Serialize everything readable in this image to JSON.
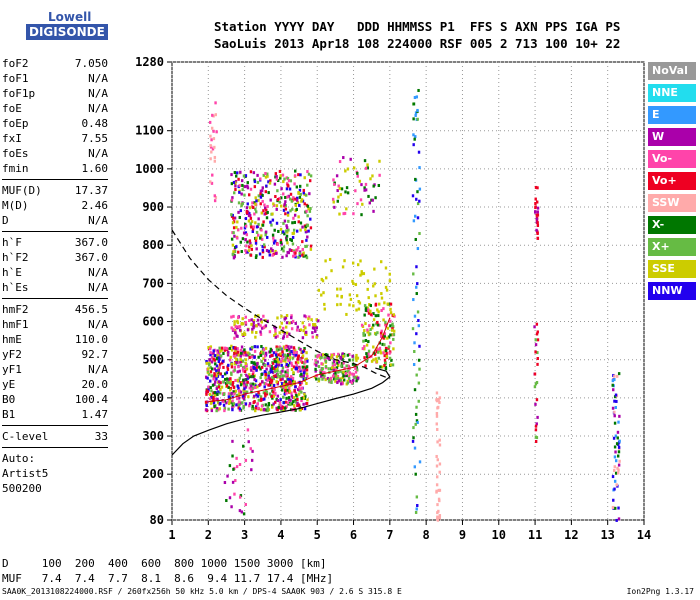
{
  "logo": {
    "line1": "Lowell",
    "line2": "DIGISONDE"
  },
  "header": {
    "labels": "Station YYYY DAY   DDD HHMMSS P1  FFS S AXN PPS IGA PS",
    "values": "SaoLuis 2013 Apr18 108 224000 RSF 005 2 713 100 10+ 22"
  },
  "params": [
    [
      {
        "k": "foF2",
        "v": "7.050"
      },
      {
        "k": "foF1",
        "v": "N/A"
      },
      {
        "k": "foF1p",
        "v": "N/A"
      },
      {
        "k": "foE",
        "v": "N/A"
      },
      {
        "k": "foEp",
        "v": "0.48"
      },
      {
        "k": "fxI",
        "v": "7.55"
      },
      {
        "k": "foEs",
        "v": "N/A"
      },
      {
        "k": "fmin",
        "v": "1.60"
      }
    ],
    [
      {
        "k": "MUF(D)",
        "v": "17.37"
      },
      {
        "k": "M(D)",
        "v": "2.46"
      },
      {
        "k": "D",
        "v": "N/A"
      }
    ],
    [
      {
        "k": "h`F",
        "v": "367.0"
      },
      {
        "k": "h`F2",
        "v": "367.0"
      },
      {
        "k": "h`E",
        "v": "N/A"
      },
      {
        "k": "h`Es",
        "v": "N/A"
      }
    ],
    [
      {
        "k": "hmF2",
        "v": "456.5"
      },
      {
        "k": "hmF1",
        "v": "N/A"
      },
      {
        "k": "hmE",
        "v": "110.0"
      },
      {
        "k": "yF2",
        "v": "92.7"
      },
      {
        "k": "yF1",
        "v": "N/A"
      },
      {
        "k": "yE",
        "v": "20.0"
      },
      {
        "k": "B0",
        "v": "100.4"
      },
      {
        "k": "B1",
        "v": "1.47"
      }
    ],
    [
      {
        "k": "C-level",
        "v": "33"
      }
    ]
  ],
  "auto": {
    "l1": "Auto:",
    "l2": "Artist5",
    "l3": "500200"
  },
  "legend": [
    {
      "label": "NoVal",
      "color": "#999999"
    },
    {
      "label": "NNE",
      "color": "#22ddee"
    },
    {
      "label": "E",
      "color": "#3399ff"
    },
    {
      "label": "W",
      "color": "#aa00aa"
    },
    {
      "label": "Vo-",
      "color": "#ff44aa"
    },
    {
      "label": "Vo+",
      "color": "#ee0022"
    },
    {
      "label": "SSW",
      "color": "#ffaaaa"
    },
    {
      "label": "X-",
      "color": "#007700"
    },
    {
      "label": "X+",
      "color": "#66bb44"
    },
    {
      "label": "SSE",
      "color": "#cccc00"
    },
    {
      "label": "NNW",
      "color": "#2200ee"
    }
  ],
  "bottom": {
    "row1": "D     100  200  400  600  800 1000 1500 3000 [km]",
    "row2": "MUF   7.4  7.4  7.7  8.1  8.6  9.4 11.7 17.4 [MHz]"
  },
  "footer": {
    "left": "SAA0K_2013108224000.RSF / 260fx256h 50 kHz 5.0 km / DPS-4 SAA0K 903 / 2.6 S 315.8 E",
    "right": "Ion2Png 1.3.17"
  },
  "chart_data": {
    "type": "scatter",
    "xlim": [
      1,
      14
    ],
    "ylim": [
      80,
      1280
    ],
    "xticks": [
      1,
      2,
      3,
      4,
      5,
      6,
      7,
      8,
      9,
      10,
      11,
      12,
      13,
      14
    ],
    "yticks": [
      80,
      200,
      300,
      400,
      500,
      600,
      700,
      800,
      900,
      1000,
      1100,
      1280
    ],
    "grid": "dotted",
    "trace_curve": [
      [
        1.0,
        250
      ],
      [
        1.3,
        280
      ],
      [
        1.6,
        300
      ],
      [
        2.0,
        315
      ],
      [
        2.5,
        332
      ],
      [
        3.0,
        345
      ],
      [
        3.5,
        355
      ],
      [
        4.0,
        363
      ],
      [
        4.5,
        372
      ],
      [
        5.0,
        385
      ],
      [
        5.5,
        398
      ],
      [
        6.0,
        410
      ],
      [
        6.5,
        425
      ],
      [
        6.8,
        440
      ],
      [
        7.0,
        455
      ],
      [
        6.9,
        470
      ],
      [
        6.6,
        478
      ]
    ],
    "profile_curve": [
      [
        1.0,
        840
      ],
      [
        1.5,
        765
      ],
      [
        2.0,
        710
      ],
      [
        2.5,
        668
      ],
      [
        3.0,
        635
      ],
      [
        3.5,
        605
      ],
      [
        4.0,
        578
      ],
      [
        4.5,
        550
      ],
      [
        5.0,
        522
      ],
      [
        5.5,
        500
      ],
      [
        6.0,
        490
      ],
      [
        6.3,
        480
      ],
      [
        6.6,
        465
      ],
      [
        7.0,
        450
      ]
    ],
    "scaled_trace": [
      [
        2.0,
        390
      ],
      [
        2.5,
        395
      ],
      [
        3.0,
        410
      ],
      [
        3.5,
        420
      ],
      [
        4.0,
        430
      ],
      [
        4.5,
        440
      ],
      [
        5.0,
        460
      ],
      [
        5.5,
        470
      ],
      [
        6.0,
        480
      ],
      [
        6.5,
        510
      ],
      [
        6.8,
        560
      ],
      [
        7.0,
        610
      ]
    ],
    "echo_clusters": [
      {
        "x": [
          1.9,
          4.7
        ],
        "y": [
          370,
          540
        ],
        "n": 900,
        "colors": [
          "#ff44aa",
          "#aa00aa",
          "#2200ee",
          "#ee0022",
          "#007700",
          "#cccc00",
          "#66bb44"
        ]
      },
      {
        "x": [
          4.9,
          6.1
        ],
        "y": [
          440,
          520
        ],
        "n": 180,
        "colors": [
          "#ff44aa",
          "#aa00aa",
          "#007700",
          "#cccc00",
          "#66bb44"
        ]
      },
      {
        "x": [
          6.2,
          7.1
        ],
        "y": [
          480,
          650
        ],
        "n": 150,
        "colors": [
          "#ee0022",
          "#007700",
          "#66bb44",
          "#ff44aa",
          "#cccc00"
        ]
      },
      {
        "x": [
          2.6,
          4.8
        ],
        "y": [
          770,
          1000
        ],
        "n": 420,
        "colors": [
          "#cccc00",
          "#007700",
          "#ff44aa",
          "#aa00aa",
          "#2200ee",
          "#66bb44",
          "#ee0022"
        ]
      },
      {
        "x": [
          5.4,
          6.7
        ],
        "y": [
          880,
          1040
        ],
        "n": 60,
        "colors": [
          "#aa00aa",
          "#ff44aa",
          "#cccc00",
          "#007700"
        ]
      },
      {
        "x": [
          2.6,
          5.0
        ],
        "y": [
          560,
          620
        ],
        "n": 140,
        "colors": [
          "#cccc00",
          "#ff44aa",
          "#aa00aa"
        ]
      },
      {
        "x": [
          5.0,
          7.0
        ],
        "y": [
          620,
          770
        ],
        "n": 60,
        "colors": [
          "#cccc00"
        ]
      },
      {
        "x": [
          7.6,
          7.8
        ],
        "y": [
          80,
          1220
        ],
        "n": 70,
        "colors": [
          "#007700",
          "#66bb44",
          "#2200ee",
          "#3399ff"
        ]
      },
      {
        "x": [
          8.25,
          8.35
        ],
        "y": [
          80,
          420
        ],
        "n": 40,
        "colors": [
          "#ffaaaa"
        ]
      },
      {
        "x": [
          10.95,
          11.05
        ],
        "y": [
          820,
          960
        ],
        "n": 25,
        "colors": [
          "#ee0022",
          "#aa00aa"
        ]
      },
      {
        "x": [
          10.95,
          11.05
        ],
        "y": [
          280,
          620
        ],
        "n": 25,
        "colors": [
          "#aa00aa",
          "#66bb44",
          "#ee0022"
        ]
      },
      {
        "x": [
          13.1,
          13.3
        ],
        "y": [
          80,
          480
        ],
        "n": 60,
        "colors": [
          "#2200ee",
          "#3399ff",
          "#007700",
          "#aa00aa",
          "#ffaaaa"
        ]
      },
      {
        "x": [
          2.0,
          2.2
        ],
        "y": [
          900,
          1180
        ],
        "n": 25,
        "colors": [
          "#ffaaaa",
          "#ff44aa"
        ]
      },
      {
        "x": [
          2.4,
          3.2
        ],
        "y": [
          100,
          360
        ],
        "n": 30,
        "colors": [
          "#aa00aa",
          "#007700",
          "#ff44aa"
        ]
      }
    ]
  }
}
